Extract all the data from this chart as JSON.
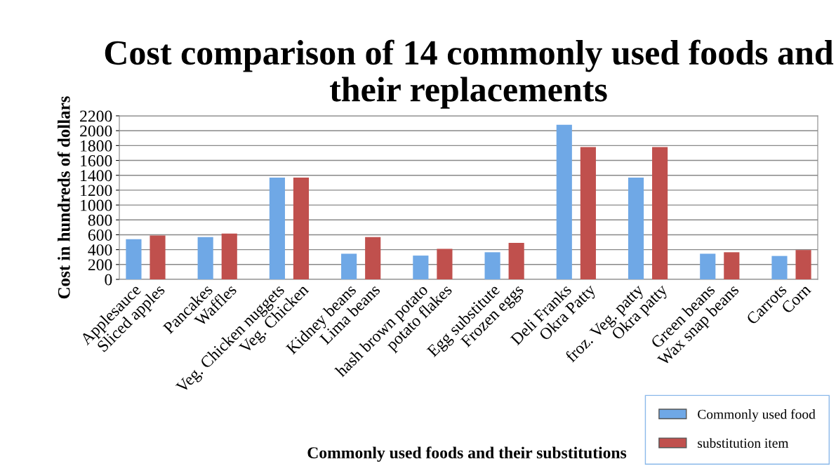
{
  "chart_data": {
    "type": "bar",
    "title": "Cost comparison of 14 commonly used foods and their replacements",
    "xlabel": "Commonly used foods and their substitutions",
    "ylabel": "Cost in hundreds of dollars",
    "categories": [
      "Applesauce",
      "Sliced apples",
      null,
      "Pancakes",
      "Waffles",
      null,
      "Veg. Chicken nuggets",
      "Veg. Chicken",
      null,
      "Kidney beans",
      "Lima beans",
      null,
      "hash brown potato",
      "potato flakes",
      null,
      "Egg substitute",
      "Frozen eggs",
      null,
      "Deli Franks",
      "Okra Patty",
      null,
      "froz. Veg. patty",
      "Okra patty",
      null,
      "Green beans",
      "Wax snap beans",
      null,
      "Carrots",
      "Corn"
    ],
    "series": [
      {
        "name": "Commonly used food",
        "color": "#6fa8e6",
        "values": [
          540,
          null,
          null,
          570,
          null,
          null,
          1370,
          null,
          null,
          345,
          null,
          null,
          320,
          null,
          null,
          365,
          null,
          null,
          2080,
          null,
          null,
          1370,
          null,
          null,
          345,
          null,
          null,
          315,
          null
        ]
      },
      {
        "name": "substitution item",
        "color": "#c0504d",
        "values": [
          null,
          590,
          null,
          null,
          615,
          null,
          null,
          1370,
          null,
          null,
          570,
          null,
          null,
          410,
          null,
          null,
          490,
          null,
          null,
          1780,
          null,
          null,
          1780,
          null,
          null,
          365,
          null,
          null,
          395
        ]
      }
    ],
    "ylim": [
      0,
      2200
    ],
    "yticks": [
      0,
      200,
      400,
      600,
      800,
      1000,
      1200,
      1400,
      1600,
      1800,
      2000,
      2200
    ],
    "grid": "y",
    "legend": "bottom right"
  }
}
